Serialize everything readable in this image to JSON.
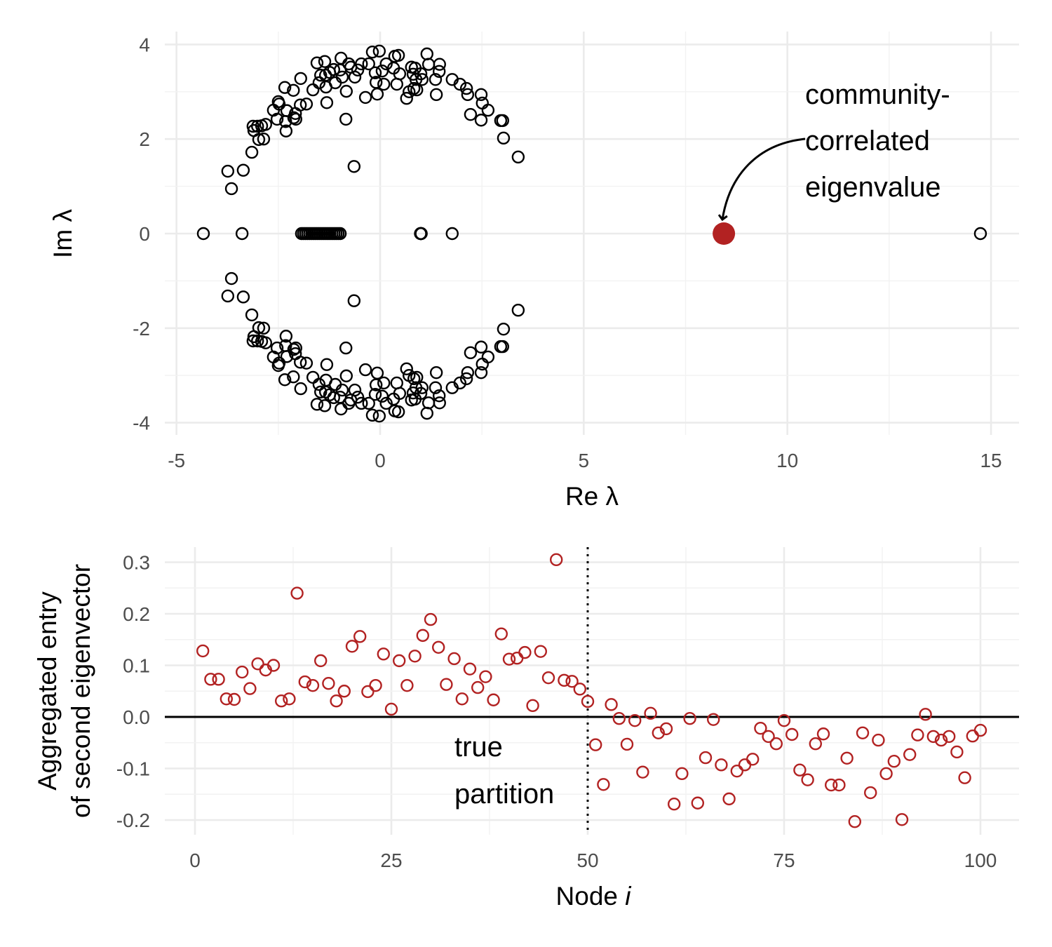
{
  "chart_data": [
    {
      "type": "scatter",
      "xlabel": "Re λ",
      "ylabel": "Im λ",
      "xlim": [
        -5.3,
        15.7
      ],
      "ylim": [
        -4.3,
        4.3
      ],
      "xticks": [
        "-5",
        "0",
        "5",
        "10",
        "15"
      ],
      "yticks": [
        "-4",
        "-2",
        "0",
        "2",
        "4"
      ],
      "grid": true,
      "marker": "open-circle",
      "point_color": "#000000",
      "highlight_color": "#b22222",
      "conjugate_pairs": [
        [
          -3.74,
          1.32
        ],
        [
          -3.65,
          0.95
        ],
        [
          -3.36,
          1.34
        ],
        [
          -3.15,
          1.72
        ],
        [
          -3.1,
          2.18
        ],
        [
          -3.01,
          2.27
        ],
        [
          -3.12,
          2.27
        ],
        [
          -2.91,
          2.28
        ],
        [
          -2.98,
          1.99
        ],
        [
          -2.86,
          2.0
        ],
        [
          -2.81,
          2.31
        ],
        [
          -2.62,
          2.61
        ],
        [
          -2.53,
          2.42
        ],
        [
          -2.5,
          2.79
        ],
        [
          -2.48,
          2.74
        ],
        [
          -2.34,
          3.09
        ],
        [
          -2.31,
          2.17
        ],
        [
          -2.29,
          2.6
        ],
        [
          -2.32,
          2.37
        ],
        [
          -2.13,
          3.03
        ],
        [
          -2.12,
          2.45
        ],
        [
          -2.08,
          2.54
        ],
        [
          -2.07,
          2.42
        ],
        [
          -1.95,
          3.28
        ],
        [
          -1.96,
          2.72
        ],
        [
          -1.81,
          2.74
        ],
        [
          -1.55,
          3.61
        ],
        [
          -1.65,
          3.04
        ],
        [
          -1.5,
          3.19
        ],
        [
          -1.46,
          3.35
        ],
        [
          -1.36,
          3.64
        ],
        [
          -1.33,
          3.1
        ],
        [
          -1.31,
          2.77
        ],
        [
          -1.34,
          3.35
        ],
        [
          -1.24,
          3.41
        ],
        [
          -1.14,
          3.47
        ],
        [
          -1.1,
          3.19
        ],
        [
          -0.96,
          3.71
        ],
        [
          -0.98,
          3.46
        ],
        [
          -0.93,
          3.31
        ],
        [
          -0.83,
          3.01
        ],
        [
          -0.84,
          2.42
        ],
        [
          -0.77,
          3.59
        ],
        [
          -0.72,
          3.52
        ],
        [
          -0.62,
          3.31
        ],
        [
          -0.55,
          3.46
        ],
        [
          -0.64,
          1.42
        ],
        [
          -0.46,
          3.59
        ],
        [
          -0.36,
          2.88
        ],
        [
          -0.28,
          3.59
        ],
        [
          -0.19,
          3.84
        ],
        [
          -0.12,
          3.4
        ],
        [
          -0.1,
          3.2
        ],
        [
          -0.02,
          3.86
        ],
        [
          -0.07,
          2.95
        ],
        [
          0.05,
          3.44
        ],
        [
          0.15,
          3.59
        ],
        [
          0.09,
          3.16
        ],
        [
          0.36,
          3.75
        ],
        [
          0.45,
          3.77
        ],
        [
          0.33,
          3.5
        ],
        [
          0.41,
          3.16
        ],
        [
          0.48,
          3.38
        ],
        [
          0.65,
          2.86
        ],
        [
          0.71,
          3.0
        ],
        [
          0.77,
          3.52
        ],
        [
          0.81,
          3.37
        ],
        [
          0.86,
          3.5
        ],
        [
          0.88,
          3.26
        ],
        [
          0.83,
          3.07
        ],
        [
          0.9,
          3.04
        ],
        [
          1.0,
          3.38
        ],
        [
          1.03,
          3.26
        ],
        [
          1.15,
          3.8
        ],
        [
          1.19,
          3.58
        ],
        [
          1.36,
          3.26
        ],
        [
          1.38,
          2.94
        ],
        [
          1.46,
          3.58
        ],
        [
          1.45,
          3.43
        ],
        [
          1.77,
          3.26
        ],
        [
          1.96,
          3.16
        ],
        [
          2.12,
          3.07
        ],
        [
          2.15,
          2.94
        ],
        [
          2.22,
          2.52
        ],
        [
          2.48,
          2.94
        ],
        [
          2.51,
          2.76
        ],
        [
          2.48,
          2.4
        ],
        [
          2.65,
          2.61
        ],
        [
          2.96,
          2.39
        ],
        [
          3.01,
          2.39
        ],
        [
          3.03,
          2.02
        ],
        [
          3.39,
          1.62
        ]
      ],
      "real_eigenvalues": [
        -4.34,
        -3.39,
        -1.93,
        -1.88,
        -1.83,
        -1.78,
        -1.73,
        -1.68,
        -1.63,
        -1.58,
        -1.53,
        -1.48,
        -1.43,
        -1.38,
        -1.33,
        -1.28,
        -1.23,
        -1.18,
        -1.13,
        -1.08,
        -1.03,
        -0.98,
        0.99,
        1.0,
        1.0,
        1.01,
        1.77,
        14.74
      ],
      "highlighted_eigenvalue": {
        "re": 8.44,
        "im": 0
      },
      "annotation": [
        "community-",
        "correlated",
        "eigenvalue"
      ]
    },
    {
      "type": "scatter",
      "xlabel_prefix": "Node ",
      "xlabel_var": "i",
      "ylabel": [
        "Aggregated entry",
        "of second eigenvector"
      ],
      "xlim": [
        -4,
        105
      ],
      "ylim": [
        -0.215,
        0.33
      ],
      "xticks": [
        "0",
        "25",
        "50",
        "75",
        "100"
      ],
      "yticks": [
        "-0.2",
        "-0.1",
        "0.0",
        "0.1",
        "0.2",
        "0.3"
      ],
      "grid": true,
      "marker": "open-circle",
      "point_color": "#b22222",
      "hline": 0,
      "vline": 50,
      "vline_label": [
        "true",
        "partition"
      ],
      "x": [
        1,
        2,
        3,
        4,
        5,
        6,
        7,
        8,
        9,
        10,
        11,
        12,
        13,
        14,
        15,
        16,
        17,
        18,
        19,
        20,
        21,
        22,
        23,
        24,
        25,
        26,
        27,
        28,
        29,
        30,
        31,
        32,
        33,
        34,
        35,
        36,
        37,
        38,
        39,
        40,
        41,
        42,
        43,
        44,
        45,
        46,
        47,
        48,
        49,
        50,
        51,
        52,
        53,
        54,
        55,
        56,
        57,
        58,
        59,
        60,
        61,
        62,
        63,
        64,
        65,
        66,
        67,
        68,
        69,
        70,
        71,
        72,
        73,
        74,
        75,
        76,
        77,
        78,
        79,
        80,
        81,
        82,
        83,
        84,
        85,
        86,
        87,
        88,
        89,
        90,
        91,
        92,
        93,
        94,
        95,
        96,
        97,
        98,
        99,
        100
      ],
      "values": [
        0.128,
        0.073,
        0.073,
        0.035,
        0.034,
        0.087,
        0.055,
        0.103,
        0.091,
        0.1,
        0.031,
        0.035,
        0.24,
        0.068,
        0.061,
        0.109,
        0.065,
        0.031,
        0.05,
        0.137,
        0.156,
        0.049,
        0.061,
        0.122,
        0.015,
        0.109,
        0.061,
        0.118,
        0.158,
        0.189,
        0.135,
        0.063,
        0.113,
        0.035,
        0.093,
        0.057,
        0.078,
        0.033,
        0.161,
        0.112,
        0.114,
        0.125,
        0.022,
        0.127,
        0.076,
        0.305,
        0.071,
        0.069,
        0.054,
        0.03,
        -0.054,
        -0.131,
        0.024,
        -0.003,
        -0.053,
        -0.007,
        -0.107,
        0.007,
        -0.031,
        -0.023,
        -0.169,
        -0.11,
        -0.003,
        -0.167,
        -0.079,
        -0.005,
        -0.093,
        -0.159,
        -0.105,
        -0.093,
        -0.082,
        -0.022,
        -0.038,
        -0.052,
        -0.007,
        -0.034,
        -0.103,
        -0.122,
        -0.052,
        -0.033,
        -0.132,
        -0.132,
        -0.08,
        -0.203,
        -0.031,
        -0.147,
        -0.045,
        -0.11,
        -0.086,
        -0.199,
        -0.073,
        -0.035,
        0.005,
        -0.038,
        -0.045,
        -0.038,
        -0.068,
        -0.118,
        -0.037,
        -0.026
      ]
    }
  ]
}
